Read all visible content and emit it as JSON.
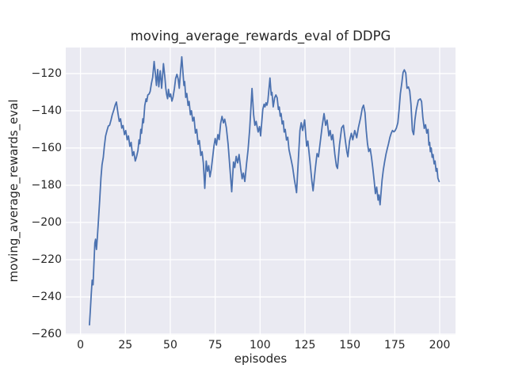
{
  "figure": {
    "title": "moving_average_rewards_eval of DDPG",
    "xlabel": "episodes",
    "ylabel": "moving_average_rewards_eval"
  },
  "style": {
    "fig_bg": "#ffffff",
    "axes_bg": "#eaeaf2",
    "grid_color": "#ffffff",
    "line_color": "#4c72b0",
    "text_color": "#262626"
  },
  "chart_data": {
    "type": "line",
    "title": "moving_average_rewards_eval of DDPG",
    "xlabel": "episodes",
    "ylabel": "moving_average_rewards_eval",
    "x_ticks": [
      0,
      25,
      50,
      75,
      100,
      125,
      150,
      175,
      200
    ],
    "y_ticks": [
      -120,
      -140,
      -160,
      -180,
      -200,
      -220,
      -240,
      -260
    ],
    "xlim": [
      -8.2,
      208.8
    ],
    "ylim": [
      -260.4,
      -106.0
    ],
    "grid": true,
    "legend": false,
    "series": [
      {
        "name": "moving_average_rewards_eval",
        "x": [
          5,
          5.5,
          6,
          6.5,
          7,
          7.5,
          8,
          8.4,
          8.9,
          9.4,
          10,
          10.7,
          11.4,
          12,
          12.7,
          13.3,
          14,
          14.8,
          15.5,
          16.2,
          17,
          17.7,
          18.5,
          19.3,
          20,
          20.9,
          21.6,
          22.3,
          23,
          23.7,
          24.5,
          25.2,
          26,
          26.7,
          27.5,
          28.2,
          29,
          29.7,
          30.5,
          31.2,
          32,
          32.6,
          33,
          33.6,
          34,
          34.7,
          35.1,
          35.8,
          36.5,
          36.9,
          37.5,
          38.2,
          38.8,
          39.5,
          40.2,
          41,
          41.7,
          42.3,
          43,
          43.6,
          44.4,
          45.2,
          46.2,
          47,
          47.5,
          48,
          48.5,
          49,
          49.6,
          50.2,
          50.9,
          51.5,
          52.3,
          53,
          53.7,
          54.4,
          55,
          55.7,
          56.4,
          57.2,
          57.6,
          58,
          58.6,
          59.2,
          59.9,
          60.5,
          61.2,
          61.8,
          62.5,
          63.2,
          64,
          64.7,
          65.5,
          66.2,
          67,
          67.7,
          68.4,
          69.2,
          70,
          70.7,
          71.4,
          72.1,
          72.8,
          73.6,
          74.3,
          75,
          75.7,
          76.5,
          77.2,
          78,
          78.8,
          79.6,
          80.3,
          81.2,
          82.2,
          83.3,
          84.2,
          85.2,
          85.9,
          86.7,
          87.5,
          88.3,
          89.2,
          90,
          90.7,
          91.5,
          92.5,
          93.3,
          94.2,
          94.8,
          95.5,
          96.4,
          97.1,
          97.8,
          98.9,
          99.7,
          100.3,
          101.5,
          102.2,
          102.7,
          103.3,
          103.8,
          104.3,
          105.5,
          106.2,
          106.6,
          107.3,
          108.1,
          108.8,
          109.5,
          110.2,
          110.7,
          111.2,
          111.7,
          112.3,
          112.9,
          113.4,
          114,
          114.7,
          115.4,
          116.1,
          117.2,
          118.1,
          119.1,
          119.9,
          120.3,
          121.2,
          122.2,
          122.9,
          123.7,
          124.8,
          125.9,
          126.6,
          127.8,
          128.8,
          129.5,
          130.7,
          131.7,
          132.5,
          133.6,
          134.6,
          135.6,
          136.5,
          137.3,
          138.3,
          139,
          139.8,
          140.5,
          141.6,
          142.5,
          143.1,
          144.2,
          145.4,
          146.4,
          147.5,
          148.3,
          148.9,
          149.8,
          150.8,
          151.6,
          152.7,
          153.8,
          154.7,
          155.9,
          156.9,
          157.6,
          158.4,
          159.1,
          159.8,
          160.5,
          161.3,
          162,
          162.7,
          163.5,
          164.2,
          164.9,
          165.7,
          166.2,
          166.8,
          167.9,
          168.6,
          169.3,
          170.1,
          170.8,
          171.5,
          172.3,
          173,
          173.7,
          174.5,
          175.2,
          175.9,
          176.7,
          177.4,
          178.1,
          178.9,
          179.6,
          180.3,
          181.1,
          181.8,
          182.6,
          183.3,
          184,
          184.8,
          185.5,
          186.2,
          187,
          188.1,
          189.2,
          189.9,
          190.6,
          191.4,
          192.1,
          192.8,
          193.5,
          194,
          194.4,
          194.8,
          195.3,
          195.8,
          196.3,
          196.9,
          197.4,
          198,
          198.5,
          199,
          199.7
        ],
        "y": [
          -255,
          -247,
          -238.5,
          -231,
          -233.5,
          -222,
          -211,
          -209,
          -214.5,
          -208,
          -199,
          -188,
          -176,
          -169,
          -165,
          -159,
          -153.5,
          -150.5,
          -148.2,
          -147.8,
          -145,
          -142.1,
          -139.8,
          -137,
          -135.3,
          -141.5,
          -145.7,
          -144.3,
          -149.3,
          -147.9,
          -152.8,
          -150.6,
          -155.6,
          -153.5,
          -159.1,
          -157,
          -164.1,
          -162,
          -167,
          -164.8,
          -161.3,
          -155.6,
          -157.7,
          -150,
          -152.1,
          -144.3,
          -146.4,
          -137.2,
          -133.6,
          -135,
          -131.5,
          -131,
          -129.6,
          -125.3,
          -122,
          -113.5,
          -120,
          -126.4,
          -117.8,
          -127.1,
          -118.5,
          -127.9,
          -114.7,
          -122.2,
          -127.9,
          -131.4,
          -133.5,
          -128.5,
          -132.5,
          -131,
          -134.8,
          -132.8,
          -128,
          -122.5,
          -120.4,
          -123,
          -127.9,
          -119,
          -111,
          -121.4,
          -126.4,
          -124.3,
          -132.8,
          -130.7,
          -137.1,
          -135,
          -142.1,
          -140,
          -145.5,
          -143.5,
          -152,
          -150,
          -158,
          -156,
          -164,
          -162,
          -168,
          -181.7,
          -167,
          -172.5,
          -169.5,
          -175.5,
          -171.5,
          -165,
          -159,
          -154.9,
          -158.4,
          -152.8,
          -155.5,
          -147,
          -143,
          -146.5,
          -144.5,
          -149,
          -158,
          -172,
          -183.5,
          -167.5,
          -170.5,
          -164.5,
          -168,
          -163.5,
          -171,
          -176.5,
          -173.5,
          -178,
          -168,
          -161,
          -150,
          -140,
          -128,
          -142.1,
          -147.8,
          -145.7,
          -151.4,
          -148.5,
          -153.5,
          -139.3,
          -136.5,
          -137.9,
          -135.7,
          -137,
          -135,
          -122.4,
          -131.5,
          -130.1,
          -137.9,
          -133,
          -131.5,
          -133,
          -139.3,
          -138,
          -142.9,
          -141.5,
          -147.1,
          -145.5,
          -151.4,
          -150,
          -155.7,
          -154.2,
          -160.9,
          -165.9,
          -170.2,
          -177,
          -181.5,
          -184,
          -168,
          -150.5,
          -146.4,
          -150.6,
          -144.9,
          -159,
          -156.3,
          -167.5,
          -177.5,
          -183,
          -171.5,
          -163,
          -164.7,
          -156,
          -148,
          -141.5,
          -147.8,
          -145,
          -153.5,
          -150.6,
          -155.6,
          -152.8,
          -163.3,
          -169.7,
          -171,
          -158.4,
          -149.2,
          -147.8,
          -156.3,
          -161.9,
          -164.7,
          -156.3,
          -152.1,
          -155.6,
          -150.6,
          -154.5,
          -149.2,
          -144,
          -138.6,
          -137,
          -141,
          -150.6,
          -157.7,
          -161.9,
          -160.4,
          -164.8,
          -170.4,
          -177.4,
          -184.5,
          -181,
          -188,
          -185.2,
          -190.5,
          -177.4,
          -171.8,
          -167.6,
          -163.3,
          -160.4,
          -157.7,
          -154.2,
          -152.1,
          -150.6,
          -151.3,
          -150.6,
          -149.2,
          -146.4,
          -139.3,
          -130.8,
          -125.1,
          -119.4,
          -118,
          -119.7,
          -127.9,
          -127.2,
          -129.3,
          -136.5,
          -150.6,
          -152.8,
          -144.9,
          -139.3,
          -134.3,
          -133.6,
          -135,
          -143.5,
          -149.5,
          -147.5,
          -152,
          -150,
          -158.4,
          -157,
          -162,
          -160,
          -165,
          -163.5,
          -168.5,
          -167,
          -172.5,
          -171,
          -176.2,
          -178
        ]
      }
    ]
  }
}
